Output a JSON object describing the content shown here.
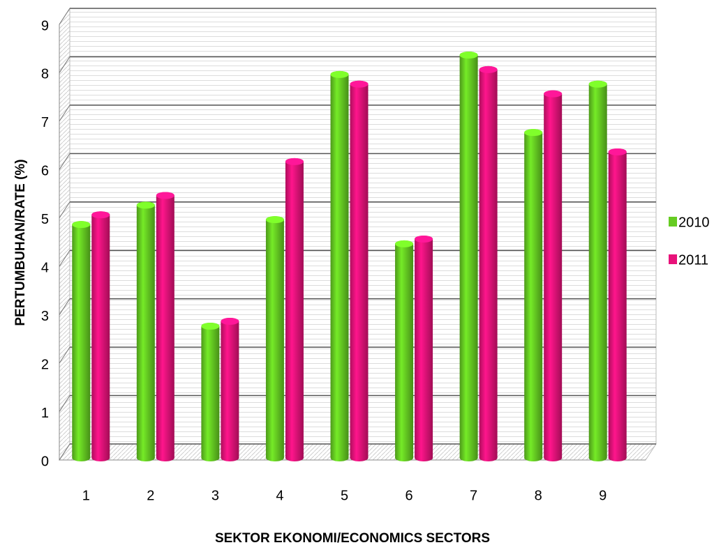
{
  "chart_data": {
    "type": "bar",
    "ylabel": "PERTUMBUHAN/RATE  (%)",
    "xlabel": "SEKTOR EKONOMI/ECONOMICS  SECTORS",
    "categories": [
      "1",
      "2",
      "3",
      "4",
      "5",
      "6",
      "7",
      "8",
      "9"
    ],
    "series": [
      {
        "name": "2010",
        "color": "#66cc22",
        "values": [
          4.7,
          5.1,
          2.6,
          4.8,
          7.8,
          4.3,
          8.2,
          6.6,
          7.6
        ]
      },
      {
        "name": "2011",
        "color": "#e8127a",
        "values": [
          4.9,
          5.3,
          2.7,
          6.0,
          7.6,
          4.4,
          7.9,
          7.4,
          6.2
        ]
      }
    ],
    "ylim": [
      0,
      9
    ],
    "yticks": [
      0,
      1,
      2,
      3,
      4,
      5,
      6,
      7,
      8,
      9
    ],
    "grid": true,
    "legend": "right"
  }
}
